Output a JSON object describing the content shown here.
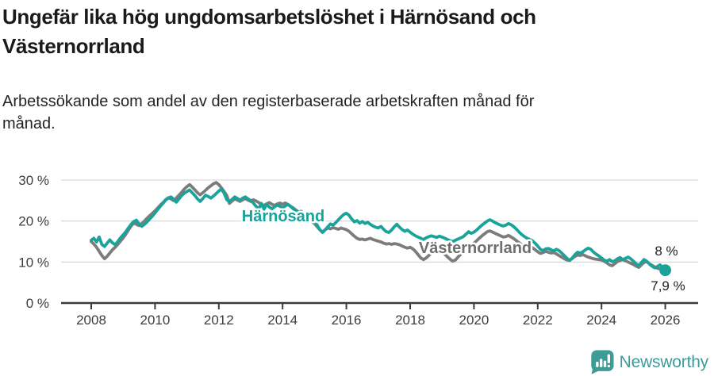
{
  "header": {
    "title": "Ungefär lika hög ungdomsarbetslöshet i Härnösand och Västernorrland",
    "subtitle_line1": "Arbetssökande som andel av den registerbaserade arbetskraften månad för",
    "subtitle_line2": "månad."
  },
  "colors": {
    "harnosand": "#1AA39B",
    "harnosand_label": "#17A39B",
    "vasternorrland": "#7C7C7C",
    "vasternorrland_label": "#6F6F6F",
    "grid": "#DBDBDB",
    "axis": "#3A3A3A",
    "brand": "#3E9C98"
  },
  "chart_data": {
    "type": "line",
    "title": "Ungefär lika hög ungdomsarbetslöshet i Härnösand och Västernorrland",
    "subtitle": "Arbetssökande som andel av den registerbaserade arbetskraften månad för månad.",
    "x_unit": "monthly",
    "x_start_year": 2008,
    "xlim": [
      2007.1,
      2027.0
    ],
    "ylim": [
      0,
      32
    ],
    "grid": "horizontal",
    "legend_position": "inline-labels",
    "y_ticks": [
      {
        "label": "0 %",
        "value": 0
      },
      {
        "label": "10 %",
        "value": 10
      },
      {
        "label": "20 %",
        "value": 20
      },
      {
        "label": "30 %",
        "value": 30
      }
    ],
    "x_ticks": [
      {
        "label": "2008",
        "year": 2008
      },
      {
        "label": "2010",
        "year": 2010
      },
      {
        "label": "2012",
        "year": 2012
      },
      {
        "label": "2014",
        "year": 2014
      },
      {
        "label": "2016",
        "year": 2016
      },
      {
        "label": "2018",
        "year": 2018
      },
      {
        "label": "2020",
        "year": 2020
      },
      {
        "label": "2022",
        "year": 2022
      },
      {
        "label": "2024",
        "year": 2024
      },
      {
        "label": "2026",
        "year": 2026
      }
    ],
    "series": [
      {
        "name": "Härnösand",
        "slug": "harnosand",
        "label": "Härnösand",
        "end_label": "8 %",
        "end_dot": true,
        "color": "#1AA39B",
        "values": [
          15.3,
          15.8,
          14.9,
          16.1,
          14.3,
          13.8,
          14.6,
          15.4,
          14.7,
          14.2,
          15.0,
          15.9,
          16.6,
          17.4,
          18.3,
          19.2,
          19.9,
          20.2,
          19.3,
          18.7,
          19.2,
          19.8,
          20.5,
          21.2,
          22.0,
          22.8,
          23.6,
          24.3,
          25.1,
          25.6,
          25.9,
          25.3,
          24.6,
          25.4,
          26.2,
          26.8,
          27.2,
          27.6,
          26.9,
          26.2,
          25.4,
          24.8,
          25.5,
          26.3,
          26.0,
          25.6,
          26.1,
          26.7,
          27.3,
          27.8,
          26.8,
          25.2,
          24.7,
          25.3,
          25.9,
          25.5,
          25.1,
          25.6,
          25.9,
          25.4,
          25.0,
          24.4,
          23.6,
          22.9,
          24.3,
          22.9,
          24.1,
          23.4,
          23.0,
          23.5,
          23.9,
          23.6,
          23.2,
          23.7,
          24.1,
          23.6,
          23.0,
          22.5,
          22.1,
          22.4,
          21.8,
          21.4,
          21.0,
          20.6,
          20.0,
          19.0,
          17.9,
          17.2,
          17.8,
          18.6,
          19.3,
          19.0,
          19.6,
          20.3,
          21.0,
          21.6,
          21.9,
          21.4,
          20.5,
          19.8,
          20.1,
          19.5,
          19.9,
          19.4,
          19.7,
          19.2,
          18.8,
          18.5,
          18.3,
          18.7,
          18.0,
          17.4,
          17.2,
          17.8,
          18.6,
          19.2,
          18.5,
          17.9,
          17.5,
          17.8,
          17.3,
          16.8,
          16.4,
          16.1,
          15.8,
          15.5,
          15.9,
          16.2,
          16.4,
          16.2,
          16.0,
          16.3,
          16.1,
          15.8,
          15.5,
          15.2,
          15.0,
          15.3,
          15.6,
          15.9,
          16.2,
          16.8,
          17.4,
          17.0,
          17.3,
          17.8,
          18.4,
          19.0,
          19.5,
          20.0,
          20.3,
          20.0,
          19.6,
          19.3,
          19.0,
          18.8,
          19.0,
          19.4,
          19.1,
          18.6,
          18.0,
          17.3,
          16.7,
          16.2,
          15.8,
          15.5,
          15.2,
          14.6,
          13.9,
          13.1,
          12.8,
          13.2,
          13.3,
          13.0,
          12.7,
          13.1,
          12.8,
          12.2,
          11.6,
          10.9,
          10.4,
          11.0,
          11.8,
          12.4,
          12.2,
          12.5,
          13.0,
          13.4,
          13.1,
          12.4,
          11.9,
          11.5,
          11.0,
          10.5,
          10.2,
          10.6,
          10.1,
          10.3,
          10.8,
          11.1,
          10.6,
          10.9,
          11.2,
          10.8,
          10.2,
          9.6,
          9.1,
          9.9,
          10.6,
          10.2,
          9.5,
          9.0,
          8.6,
          8.9,
          9.3,
          8.7,
          8.0
        ]
      },
      {
        "name": "Västernorrland",
        "slug": "vasternorrland",
        "label": "Västernorrland",
        "end_label": "7,9 %",
        "end_dot": false,
        "color": "#7C7C7C",
        "values": [
          15.0,
          14.4,
          13.6,
          12.6,
          11.6,
          10.8,
          11.4,
          12.2,
          13.0,
          13.6,
          14.3,
          15.1,
          15.9,
          16.8,
          17.8,
          18.8,
          19.5,
          19.2,
          18.9,
          19.4,
          20.0,
          20.7,
          21.3,
          21.9,
          22.5,
          23.2,
          23.9,
          24.5,
          25.2,
          25.7,
          25.4,
          25.0,
          25.6,
          26.3,
          27.0,
          27.8,
          28.4,
          28.9,
          28.3,
          27.6,
          26.9,
          26.4,
          26.9,
          27.5,
          28.1,
          28.6,
          29.1,
          29.4,
          28.9,
          28.1,
          27.2,
          26.2,
          24.3,
          24.9,
          25.4,
          25.1,
          24.8,
          25.2,
          25.5,
          25.1,
          24.8,
          25.2,
          24.9,
          24.5,
          24.1,
          23.8,
          24.2,
          24.5,
          24.1,
          23.8,
          24.2,
          24.4,
          24.1,
          24.4,
          24.0,
          23.6,
          23.2,
          22.7,
          22.2,
          21.8,
          21.3,
          20.8,
          20.3,
          19.8,
          19.4,
          18.6,
          17.9,
          17.3,
          17.9,
          18.3,
          18.1,
          18.4,
          18.2,
          18.0,
          18.3,
          18.1,
          17.9,
          17.5,
          16.9,
          16.3,
          15.8,
          15.5,
          15.6,
          15.4,
          15.6,
          15.8,
          15.5,
          15.3,
          15.1,
          14.9,
          14.6,
          14.4,
          14.5,
          14.3,
          14.5,
          14.4,
          14.2,
          13.9,
          13.6,
          13.4,
          13.6,
          13.2,
          12.6,
          11.8,
          11.0,
          10.6,
          11.0,
          11.6,
          12.2,
          12.6,
          12.9,
          12.7,
          12.4,
          11.9,
          11.3,
          10.7,
          10.2,
          10.5,
          11.2,
          11.9,
          12.4,
          12.7,
          13.1,
          13.8,
          14.6,
          15.2,
          15.8,
          16.4,
          16.9,
          17.4,
          17.6,
          17.3,
          17.0,
          16.7,
          16.4,
          16.1,
          16.2,
          16.5,
          16.1,
          15.7,
          15.2,
          14.7,
          14.2,
          13.9,
          14.1,
          13.8,
          13.5,
          13.0,
          12.5,
          12.1,
          12.3,
          12.6,
          12.4,
          12.2,
          12.3,
          12.0,
          11.6,
          11.2,
          10.8,
          10.5,
          10.4,
          10.9,
          11.4,
          11.7,
          11.6,
          11.8,
          11.5,
          11.2,
          11.0,
          10.8,
          10.7,
          10.6,
          10.5,
          10.2,
          9.8,
          9.3,
          9.1,
          9.6,
          10.1,
          10.4,
          10.6,
          10.3,
          10.0,
          9.7,
          9.4,
          9.0,
          8.7,
          9.3,
          9.9,
          10.1,
          9.6,
          9.2,
          8.8,
          8.5,
          8.3,
          8.1,
          7.9
        ]
      }
    ]
  },
  "footer": {
    "brand": "Newsworthy"
  }
}
